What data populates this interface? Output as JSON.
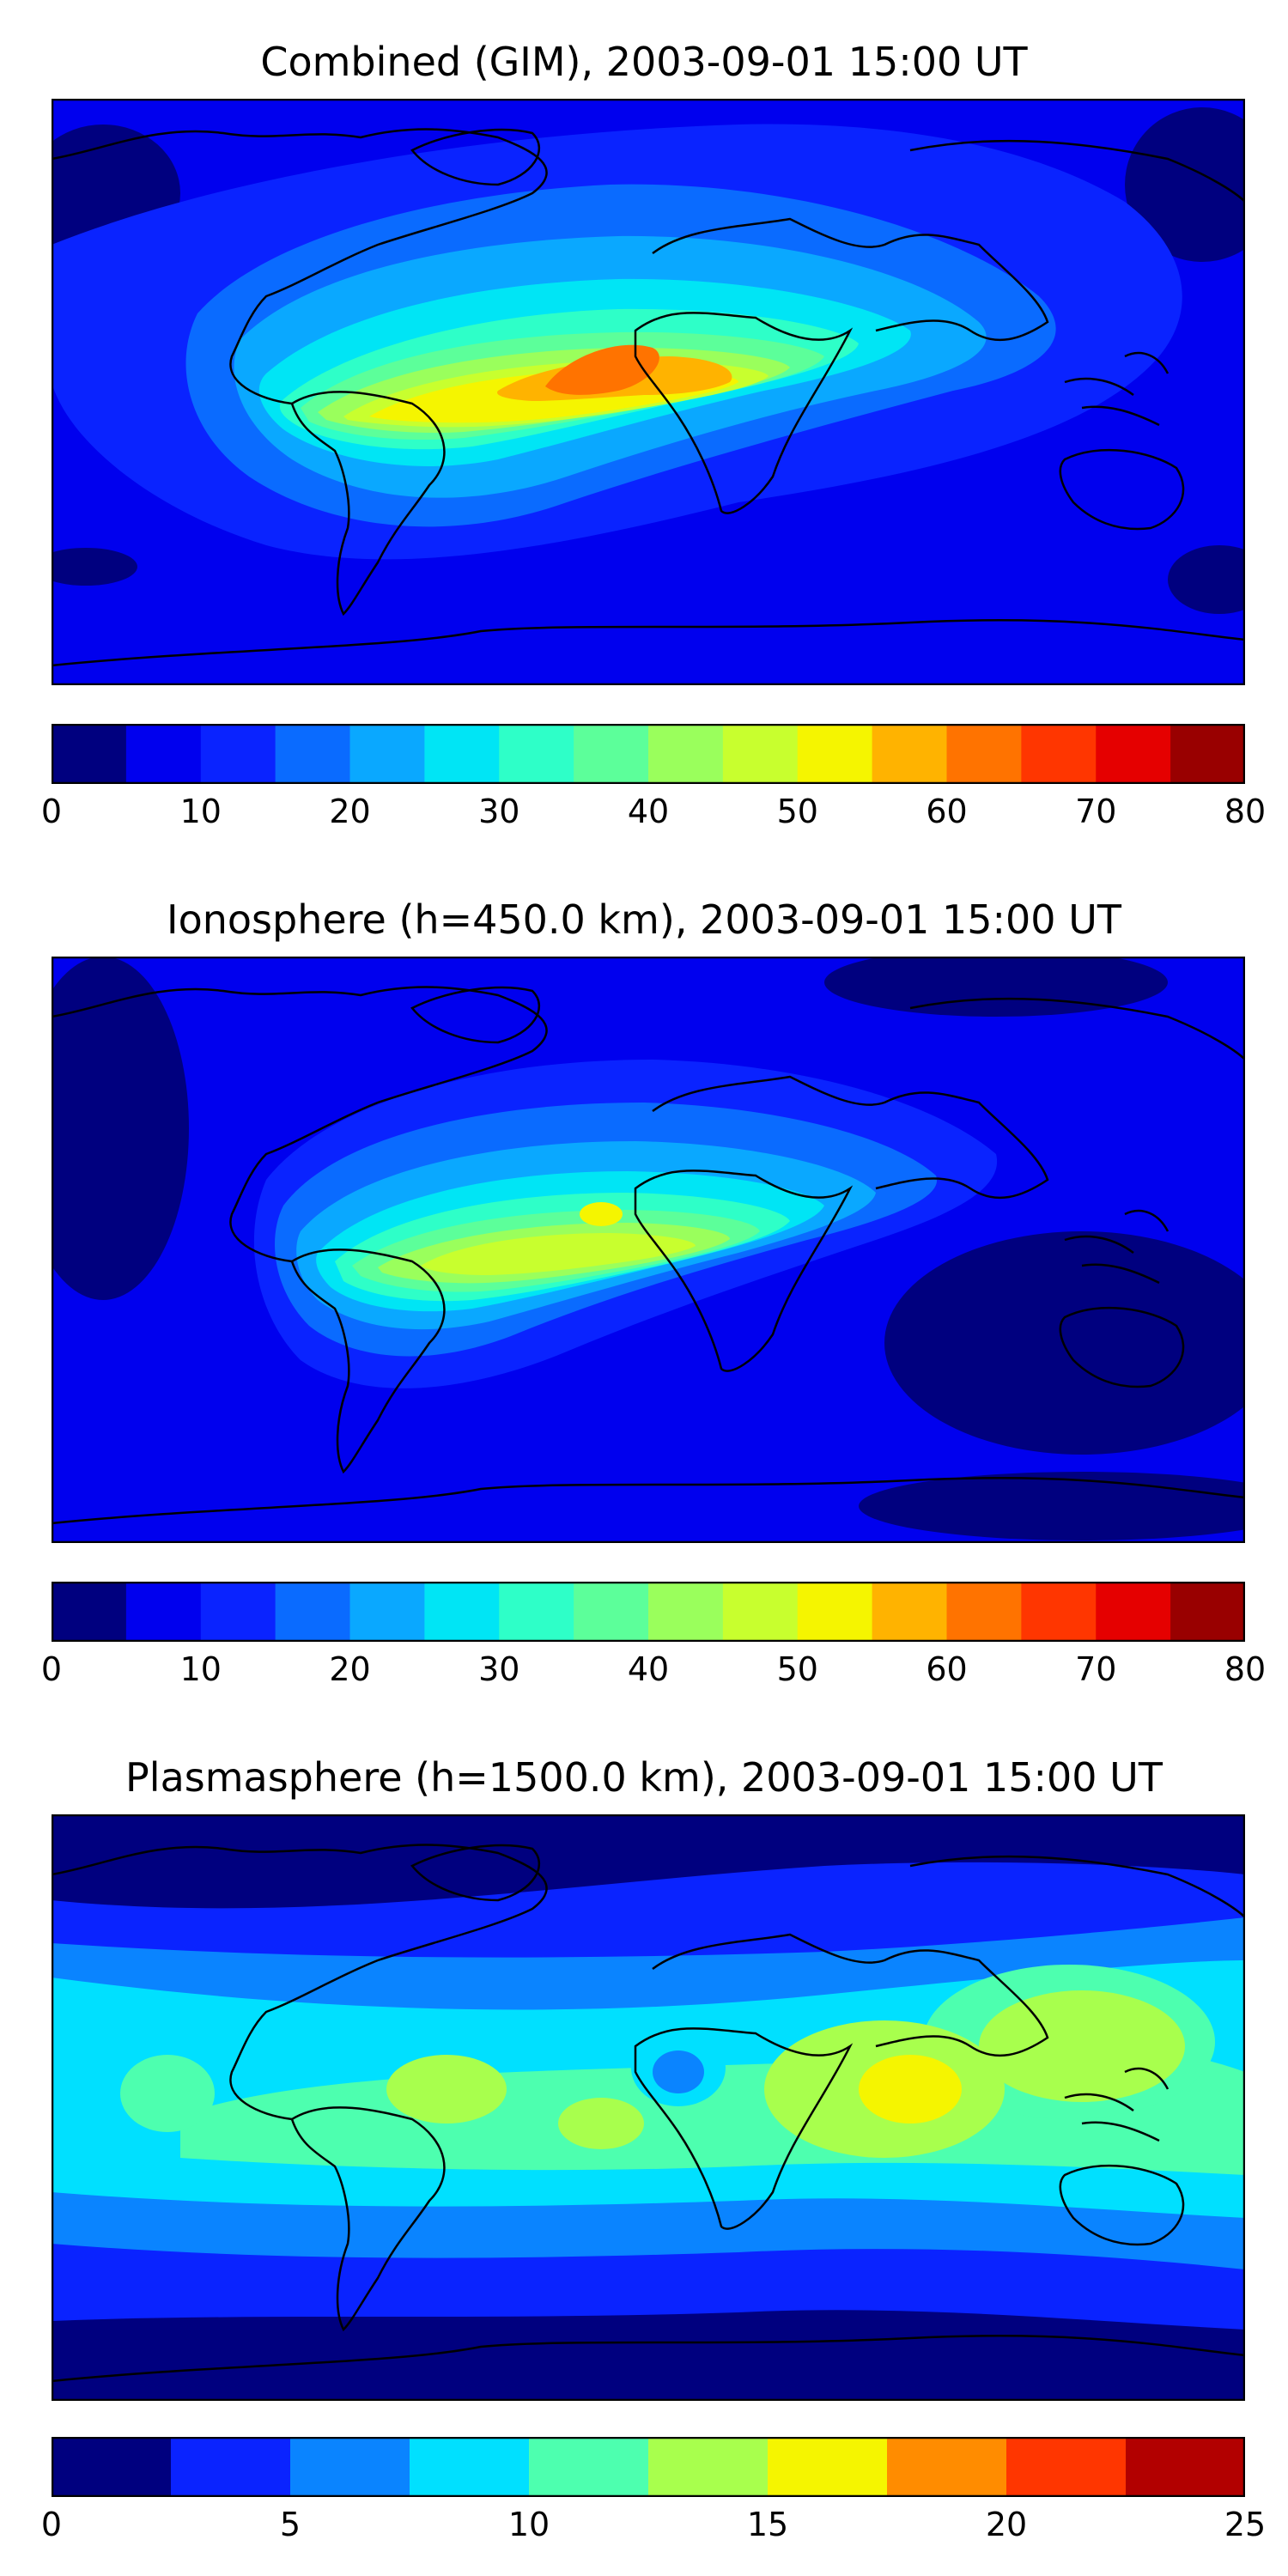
{
  "panels": [
    {
      "title": "Combined (GIM), 2003-09-01 15:00 UT",
      "colorbar": {
        "colors": [
          "#00007f",
          "#0000ee",
          "#0a23ff",
          "#0a6bff",
          "#0aa8ff",
          "#00e5f5",
          "#2effc8",
          "#5cff9a",
          "#9aff5c",
          "#c8ff2e",
          "#f5f500",
          "#ffb300",
          "#ff7300",
          "#ff3600",
          "#e50000",
          "#990000"
        ],
        "ticks": [
          "0",
          "10",
          "20",
          "30",
          "40",
          "50",
          "60",
          "70",
          "80"
        ]
      }
    },
    {
      "title": "Ionosphere  (h=450.0 km), 2003-09-01 15:00 UT",
      "colorbar": {
        "colors": [
          "#00007f",
          "#0000ee",
          "#0a23ff",
          "#0a6bff",
          "#0aa8ff",
          "#00e5f5",
          "#2effc8",
          "#5cff9a",
          "#9aff5c",
          "#c8ff2e",
          "#f5f500",
          "#ffb300",
          "#ff7300",
          "#ff3600",
          "#e50000",
          "#990000"
        ],
        "ticks": [
          "0",
          "10",
          "20",
          "30",
          "40",
          "50",
          "60",
          "70",
          "80"
        ]
      }
    },
    {
      "title": "Plasmasphere (h=1500.0 km), 2003-09-01 15:00 UT",
      "colorbar": {
        "colors": [
          "#00007f",
          "#0a23ff",
          "#0a84ff",
          "#00e0ff",
          "#4dffaf",
          "#a8ff4d",
          "#f5f500",
          "#ff8c00",
          "#ff3600",
          "#b20000"
        ],
        "ticks": [
          "0",
          "5",
          "10",
          "15",
          "20",
          "25"
        ]
      }
    }
  ]
}
